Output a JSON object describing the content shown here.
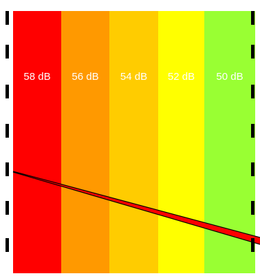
{
  "zones": [
    {
      "label": "58 dB",
      "color": "#ff0000"
    },
    {
      "label": "56 dB",
      "color": "#ff9900"
    },
    {
      "label": "54 dB",
      "color": "#ffcc00"
    },
    {
      "label": "52 dB",
      "color": "#ffff00"
    },
    {
      "label": "50 dB",
      "color": "#99ff33"
    }
  ],
  "barrier_color": "#ff0000",
  "barrier_outline_color": "#000000",
  "tick_color": "#000000"
}
